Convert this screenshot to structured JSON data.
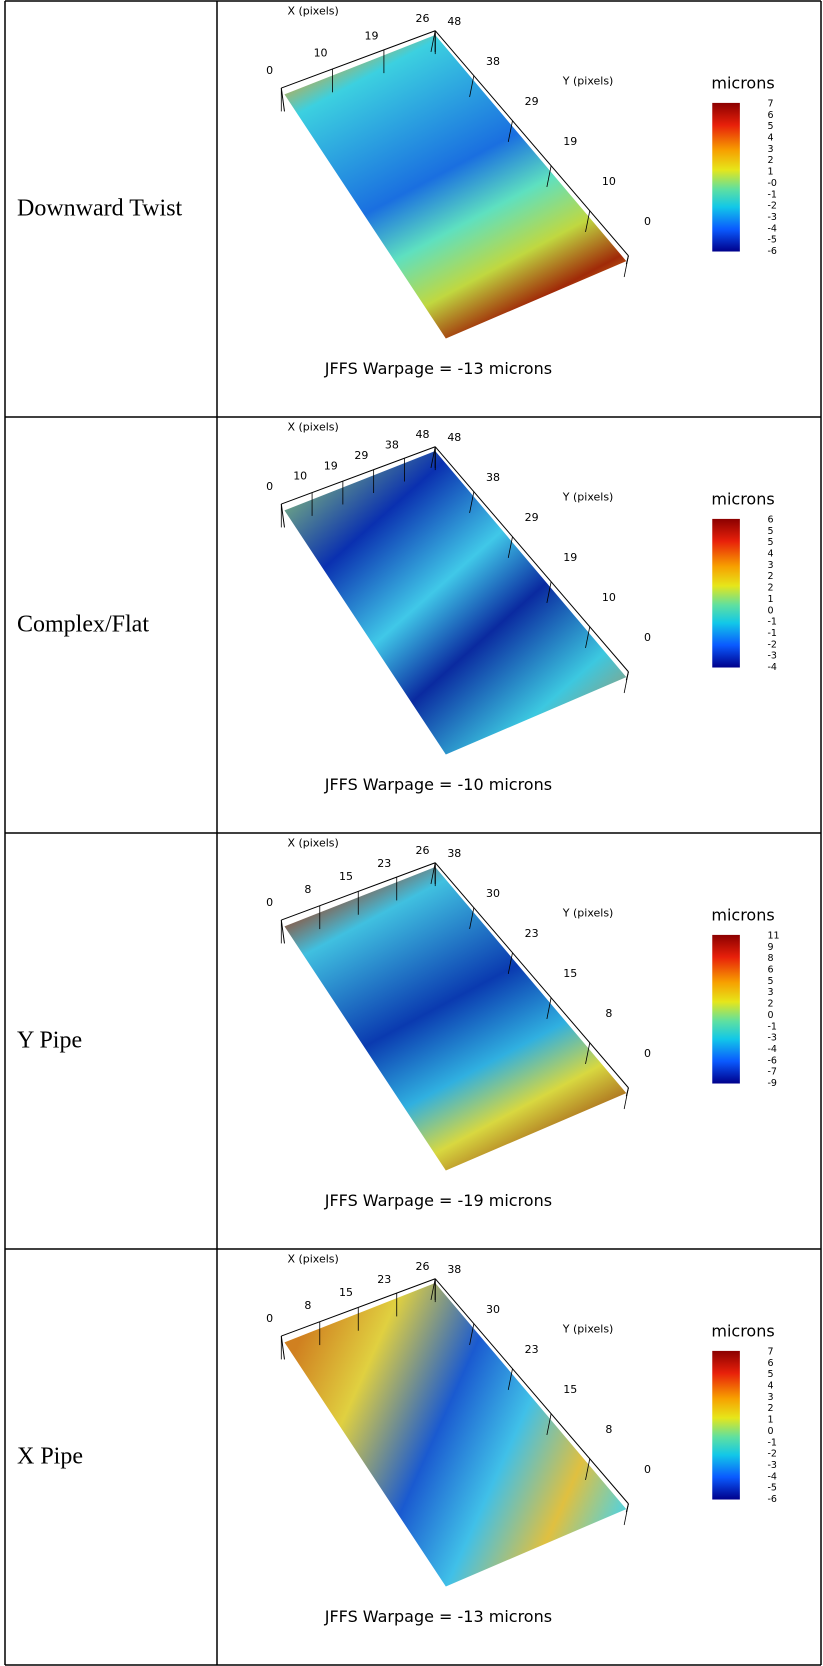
{
  "rows": [
    {
      "label": "Downward Twist",
      "plot": {
        "x_axis_label": "X (pixels)",
        "x_ticks": [
          "0",
          "10",
          "19",
          "26"
        ],
        "y_axis_label": "Y (pixels)",
        "y_ticks": [
          "48",
          "38",
          "29",
          "19",
          "10",
          "0"
        ],
        "colorbar_title": "microns",
        "colorbar_ticks": [
          "7",
          "6",
          "5",
          "4",
          "3",
          "2",
          "1",
          "-0",
          "-1",
          "-2",
          "-3",
          "-4",
          "-5",
          "-6"
        ],
        "caption": "JFFS Warpage = -13 microns"
      }
    },
    {
      "label": "Complex/Flat",
      "plot": {
        "x_axis_label": "X (pixels)",
        "x_ticks": [
          "0",
          "10",
          "19",
          "29",
          "38",
          "48"
        ],
        "y_axis_label": "Y (pixels)",
        "y_ticks": [
          "48",
          "38",
          "29",
          "19",
          "10",
          "0"
        ],
        "colorbar_title": "microns",
        "colorbar_ticks": [
          "6",
          "5",
          "5",
          "4",
          "3",
          "2",
          "2",
          "1",
          "0",
          "-1",
          "-1",
          "-2",
          "-3",
          "-4"
        ],
        "caption": "JFFS Warpage = -10 microns"
      }
    },
    {
      "label": "Y Pipe",
      "plot": {
        "x_axis_label": "X (pixels)",
        "x_ticks": [
          "0",
          "8",
          "15",
          "23",
          "26"
        ],
        "y_axis_label": "Y (pixels)",
        "y_ticks": [
          "38",
          "30",
          "23",
          "15",
          "8",
          "0"
        ],
        "colorbar_title": "microns",
        "colorbar_ticks": [
          "11",
          "9",
          "8",
          "6",
          "5",
          "3",
          "2",
          "0",
          "-1",
          "-3",
          "-4",
          "-6",
          "-7",
          "-9"
        ],
        "caption": "JFFS Warpage = -19 microns"
      }
    },
    {
      "label": "X Pipe",
      "plot": {
        "x_axis_label": "X (pixels)",
        "x_ticks": [
          "0",
          "8",
          "15",
          "23",
          "26"
        ],
        "y_axis_label": "Y (pixels)",
        "y_ticks": [
          "38",
          "30",
          "23",
          "15",
          "8",
          "0"
        ],
        "colorbar_title": "microns",
        "colorbar_ticks": [
          "7",
          "6",
          "5",
          "4",
          "3",
          "2",
          "1",
          "0",
          "-1",
          "-2",
          "-3",
          "-4",
          "-5",
          "-6"
        ],
        "caption": "JFFS Warpage = -13 microns"
      }
    }
  ]
}
